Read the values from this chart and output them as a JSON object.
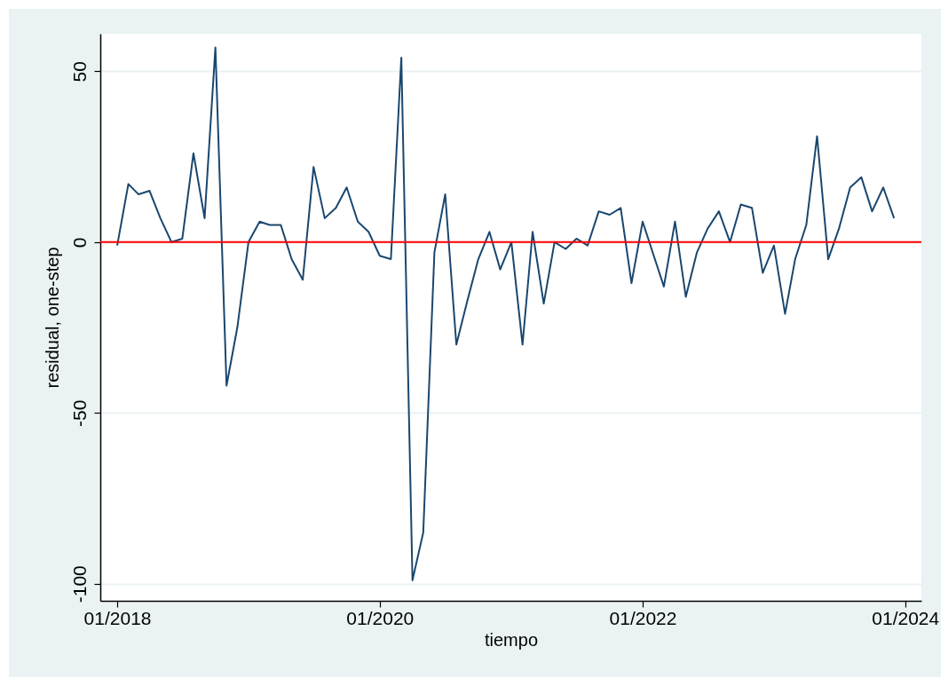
{
  "chart_data": {
    "type": "line",
    "xlabel": "tiempo",
    "ylabel": "residual, one-step",
    "x": [
      "2018-01",
      "2018-02",
      "2018-03",
      "2018-04",
      "2018-05",
      "2018-06",
      "2018-07",
      "2018-08",
      "2018-09",
      "2018-10",
      "2018-11",
      "2018-12",
      "2019-01",
      "2019-02",
      "2019-03",
      "2019-04",
      "2019-05",
      "2019-06",
      "2019-07",
      "2019-08",
      "2019-09",
      "2019-10",
      "2019-11",
      "2019-12",
      "2020-01",
      "2020-02",
      "2020-03",
      "2020-04",
      "2020-05",
      "2020-06",
      "2020-07",
      "2020-08",
      "2020-09",
      "2020-10",
      "2020-11",
      "2020-12",
      "2021-01",
      "2021-02",
      "2021-03",
      "2021-04",
      "2021-05",
      "2021-06",
      "2021-07",
      "2021-08",
      "2021-09",
      "2021-10",
      "2021-11",
      "2021-12",
      "2022-01",
      "2022-02",
      "2022-03",
      "2022-04",
      "2022-05",
      "2022-06",
      "2022-07",
      "2022-08",
      "2022-09",
      "2022-10",
      "2022-11",
      "2022-12",
      "2023-01",
      "2023-02",
      "2023-03",
      "2023-04",
      "2023-05",
      "2023-06",
      "2023-07",
      "2023-08",
      "2023-09",
      "2023-10",
      "2023-11",
      "2023-12"
    ],
    "series": [
      {
        "color": "#1a476f",
        "values": [
          -1,
          17,
          14,
          15,
          7,
          0,
          1,
          26,
          7,
          57,
          -42,
          -25,
          0,
          6,
          5,
          5,
          -5,
          -11,
          22,
          7,
          10,
          16,
          6,
          3,
          -4,
          -5,
          54,
          -99,
          -85,
          -3,
          14,
          -30,
          -17,
          -5,
          3,
          -8,
          0,
          -30,
          3,
          -18,
          0,
          -2,
          1,
          -1,
          9,
          8,
          10,
          -12,
          6,
          -4,
          -13,
          6,
          -16,
          -3,
          4,
          9,
          0,
          11,
          10,
          -9,
          -1,
          -21,
          -5,
          5,
          31,
          -5,
          4,
          16,
          19,
          9,
          16,
          7
        ]
      }
    ],
    "xlim": [
      "2017-11-15",
      "2024-02-15"
    ],
    "xticks": [
      {
        "value": "2018-01",
        "label": "01/2018"
      },
      {
        "value": "2020-01",
        "label": "01/2020"
      },
      {
        "value": "2022-01",
        "label": "01/2022"
      },
      {
        "value": "2024-01",
        "label": "01/2024"
      }
    ],
    "ylim": [
      -105,
      61
    ],
    "yticks": [
      -100,
      -50,
      0,
      50
    ],
    "grid": "y",
    "marker": "none",
    "line_style": "solid",
    "ref_lines": [
      {
        "axis": "y",
        "value": 0,
        "label": null,
        "color": "#ff0000"
      }
    ]
  }
}
